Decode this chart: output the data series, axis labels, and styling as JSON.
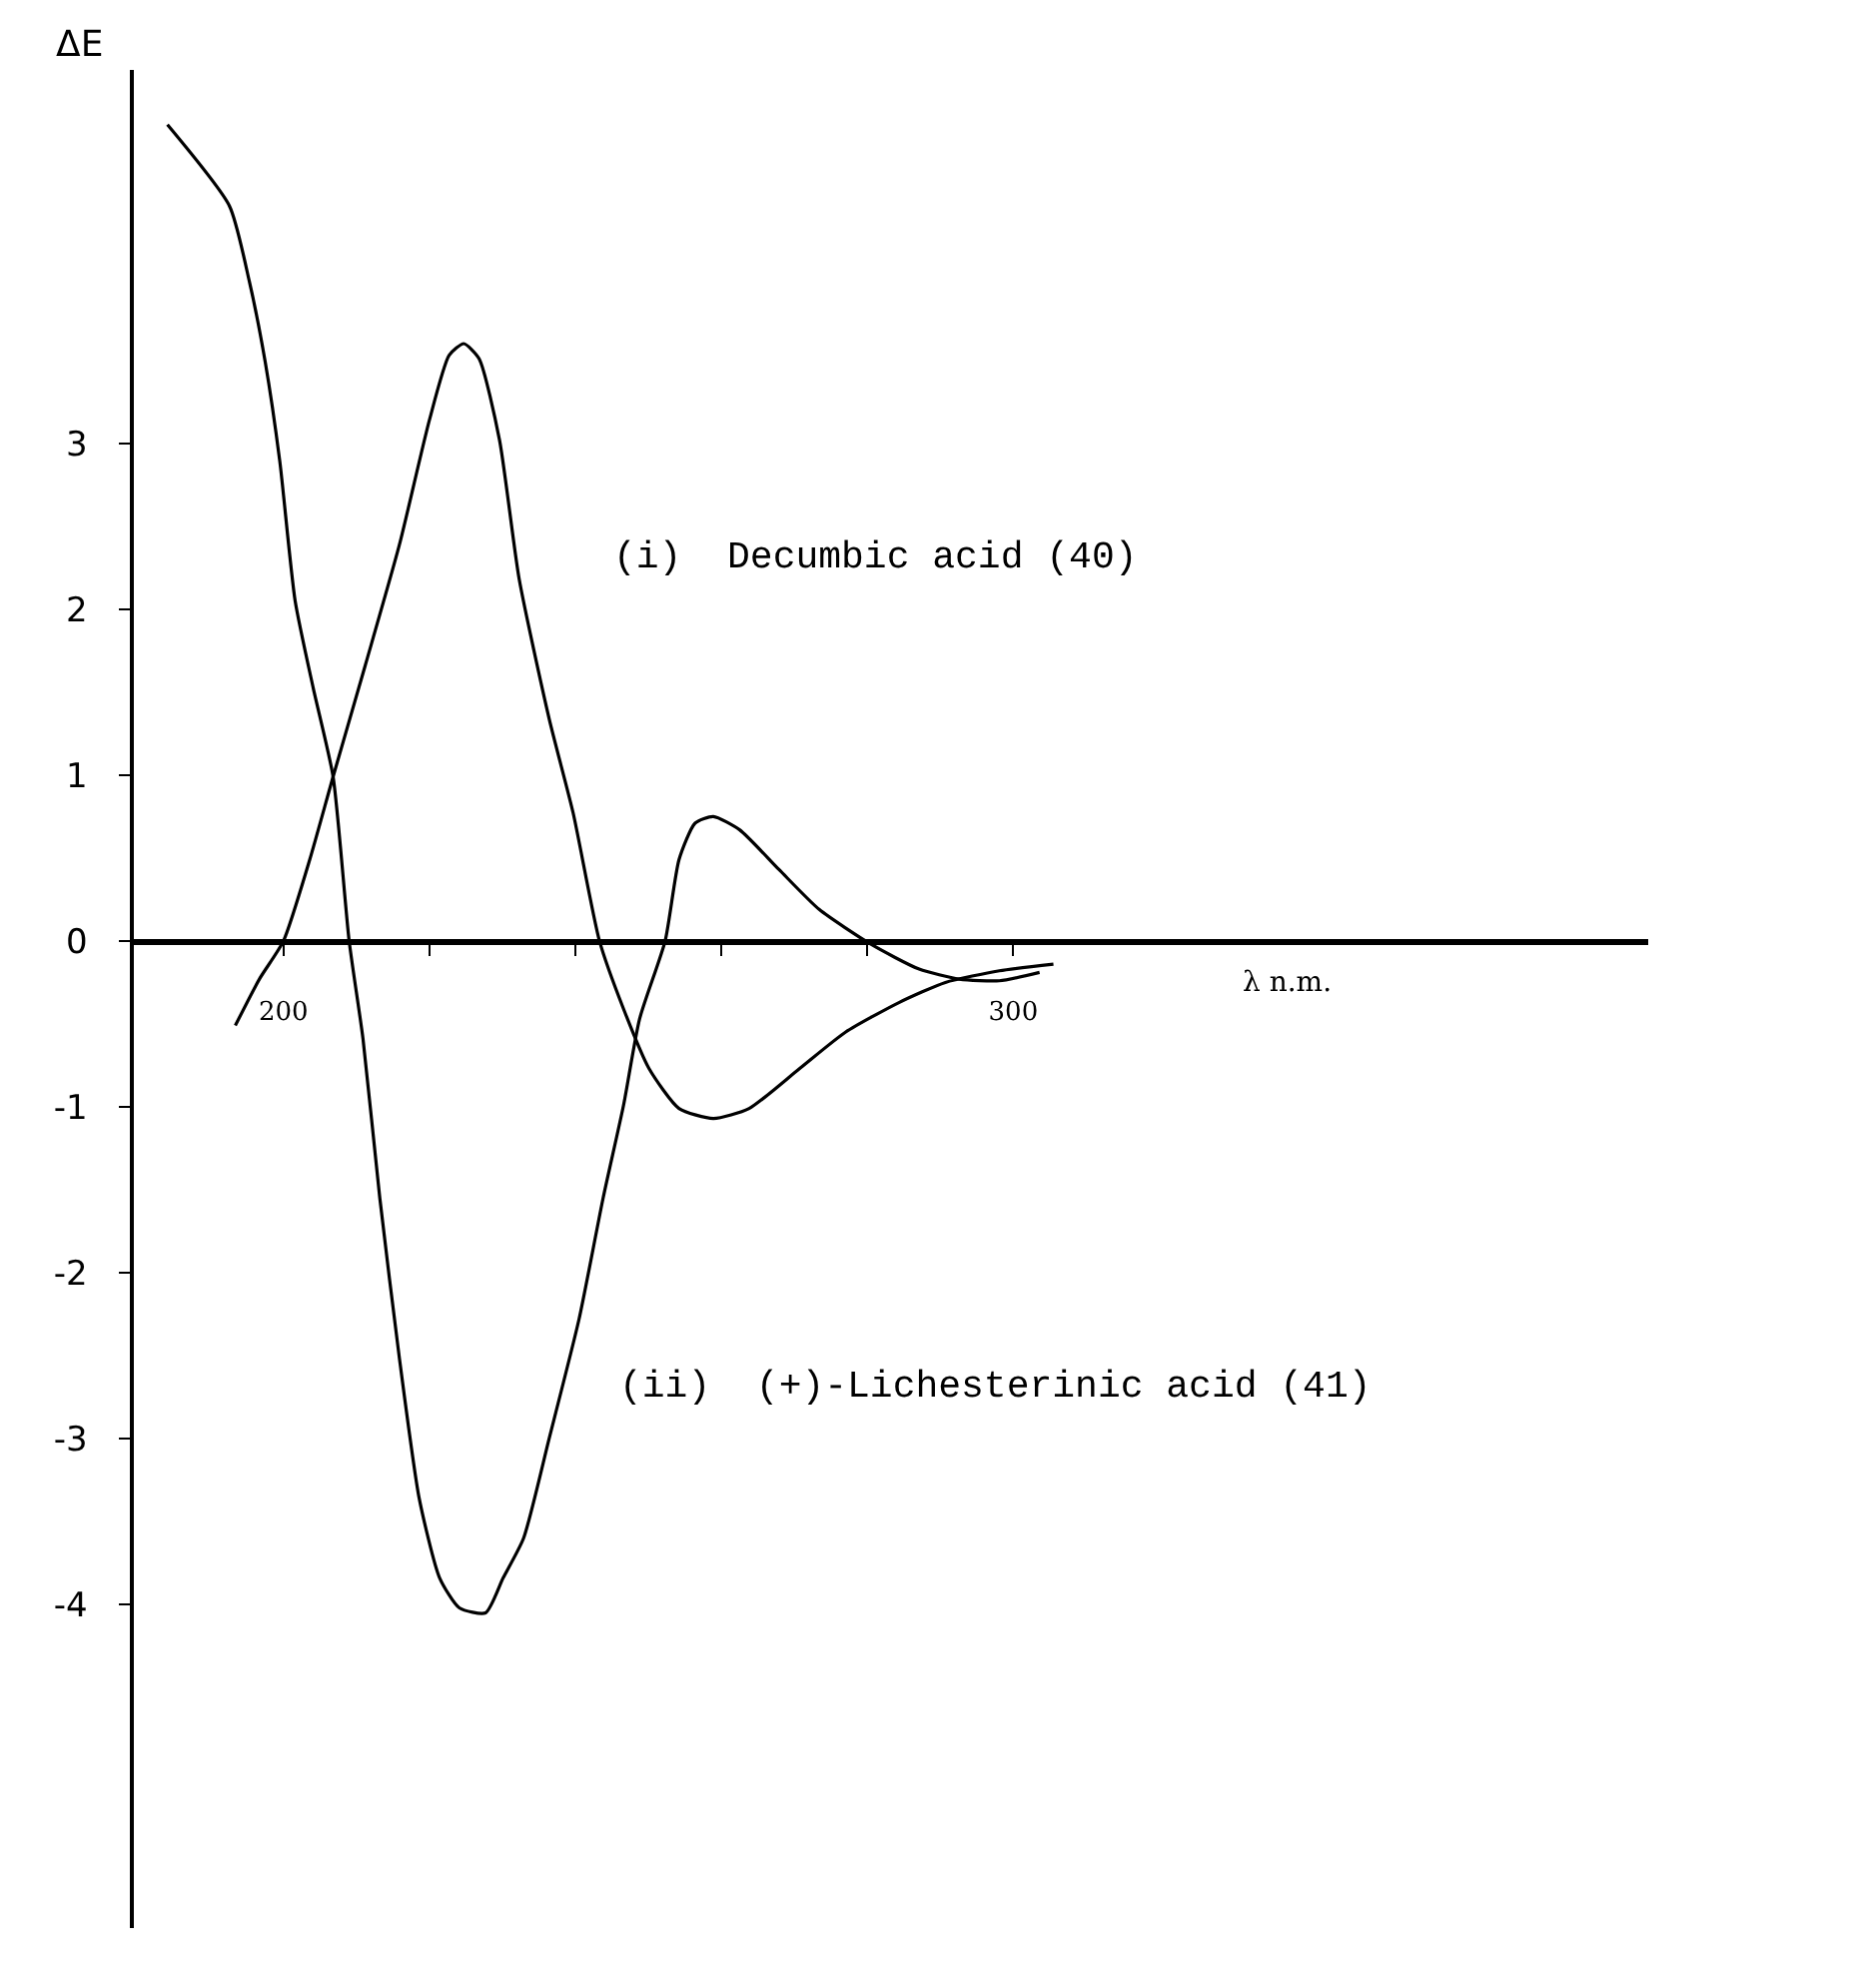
{
  "chart_data": {
    "type": "line",
    "xlabel": "λ n.m.",
    "ylabel": "ΔE",
    "xlim": [
      179.5,
      387
    ],
    "ylim": [
      -5.95,
      5.25
    ],
    "xticks": [
      200,
      {
        "value": 220,
        "label": null
      },
      {
        "value": 240,
        "label": null
      },
      {
        "value": 260,
        "label": null
      },
      {
        "value": 280,
        "label": null
      },
      300
    ],
    "yticks": [
      -4,
      -3,
      -2,
      -1,
      0,
      1,
      2,
      3
    ],
    "grid": false,
    "legend": false,
    "marker": "none",
    "line_style": "solid",
    "series": [
      {
        "name": "(i)  Decumbic acid (40)",
        "color": "#000000",
        "x": [
          193.4,
          196.7,
          200,
          203.6,
          206.8,
          211.2,
          215.9,
          220.0,
          222.7,
          224.7,
          226.8,
          229.6,
          232.3,
          236.4,
          239.7,
          243.3,
          246.6,
          250.1,
          254.2,
          258.9,
          263.8,
          270.7,
          277.0,
          284.4,
          290.7,
          298.1,
          305.5
        ],
        "values": [
          -0.51,
          -0.23,
          0,
          0.49,
          0.99,
          1.66,
          2.39,
          3.14,
          3.53,
          3.6,
          3.51,
          3.02,
          2.18,
          1.34,
          0.77,
          0,
          -0.41,
          -0.77,
          -1.01,
          -1.07,
          -1.01,
          -0.77,
          -0.55,
          -0.37,
          -0.25,
          -0.18,
          -0.14
        ]
      },
      {
        "name": "(ii)  (+)-Lichesterinic acid (41)",
        "color": "#000000",
        "x": [
          184.1,
          192.6,
          195.3,
          197.5,
          199.5,
          201.6,
          204.1,
          206.8,
          209.0,
          210.9,
          213.2,
          215.9,
          218.6,
          221.4,
          224.1,
          227.7,
          230.1,
          232.9,
          236.4,
          240.5,
          243.8,
          246.6,
          248.8,
          252.3,
          254.2,
          256.4,
          258.9,
          262.5,
          267.9,
          273.4,
          280.5,
          287.1,
          292.6,
          298.1,
          303.6
        ],
        "values": [
          4.92,
          4.43,
          3.98,
          3.49,
          2.89,
          2.05,
          1.52,
          0.99,
          0,
          -0.59,
          -1.55,
          -2.52,
          -3.36,
          -3.84,
          -4.02,
          -4.05,
          -3.84,
          -3.6,
          -3.0,
          -2.28,
          -1.55,
          -0.99,
          -0.47,
          0,
          0.49,
          0.71,
          0.75,
          0.67,
          0.43,
          0.19,
          -0.02,
          -0.17,
          -0.23,
          -0.24,
          -0.19
        ]
      }
    ]
  }
}
